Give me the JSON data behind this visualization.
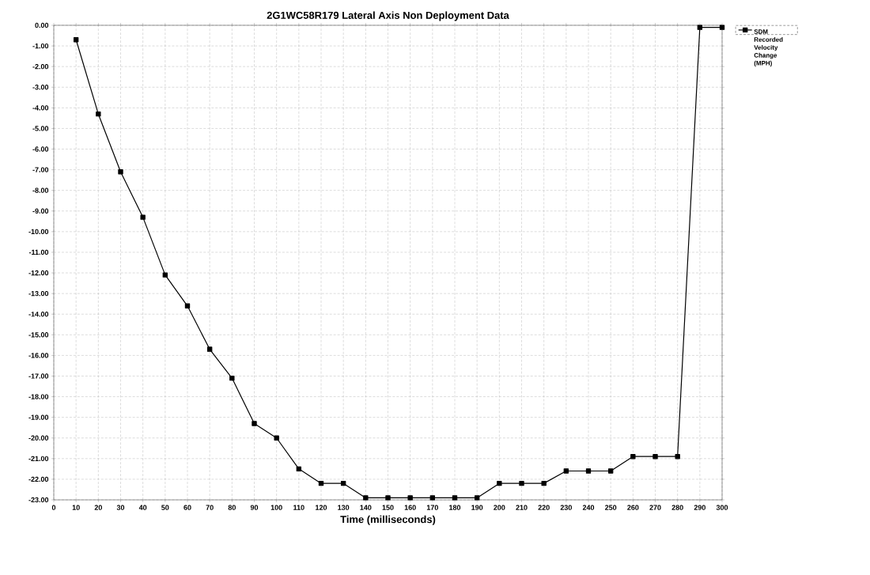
{
  "chart_data": {
    "type": "line",
    "title": "2G1WC58R179 Lateral Axis Non Deployment Data",
    "xlabel": "Time (milliseconds)",
    "x": [
      10,
      20,
      30,
      40,
      50,
      60,
      70,
      80,
      90,
      100,
      110,
      120,
      130,
      140,
      150,
      160,
      170,
      180,
      190,
      200,
      210,
      220,
      230,
      240,
      250,
      260,
      270,
      280,
      290,
      300
    ],
    "series": [
      {
        "name": "SDM Recorded Velocity Change (MPH)",
        "color": "#000000",
        "values": [
          -0.7,
          -4.3,
          -7.1,
          -9.3,
          -12.1,
          -13.6,
          -15.7,
          -17.1,
          -19.3,
          -20.0,
          -21.5,
          -22.2,
          -22.2,
          -22.9,
          -22.9,
          -22.9,
          -22.9,
          -22.9,
          -22.9,
          -22.2,
          -22.2,
          -22.2,
          -21.6,
          -21.6,
          -21.6,
          -20.9,
          -20.9,
          -20.9,
          -0.1,
          -0.1
        ]
      }
    ],
    "xlim": [
      0,
      300
    ],
    "xticks": [
      0,
      10,
      20,
      30,
      40,
      50,
      60,
      70,
      80,
      90,
      100,
      110,
      120,
      130,
      140,
      150,
      160,
      170,
      180,
      190,
      200,
      210,
      220,
      230,
      240,
      250,
      260,
      270,
      280,
      290,
      300
    ],
    "ylim": [
      -23,
      0
    ],
    "yticks": [
      {
        "value": 0,
        "label": "0.00"
      },
      {
        "value": -1,
        "label": "-1.00"
      },
      {
        "value": -2,
        "label": "-2.00"
      },
      {
        "value": -3,
        "label": "-3.00"
      },
      {
        "value": -4,
        "label": "-4.00"
      },
      {
        "value": -5,
        "label": "-5.00"
      },
      {
        "value": -6,
        "label": "-6.00"
      },
      {
        "value": -7,
        "label": "-7.00"
      },
      {
        "value": -8,
        "label": "-8.00"
      },
      {
        "value": -9,
        "label": "-9.00"
      },
      {
        "value": -10,
        "label": "-10.00"
      },
      {
        "value": -11,
        "label": "-11.00"
      },
      {
        "value": -12,
        "label": "-12.00"
      },
      {
        "value": -13,
        "label": "-13.00"
      },
      {
        "value": -14,
        "label": "-14.00"
      },
      {
        "value": -15,
        "label": "-15.00"
      },
      {
        "value": -16,
        "label": "-16.00"
      },
      {
        "value": -17,
        "label": "-17.00"
      },
      {
        "value": -18,
        "label": "-18.00"
      },
      {
        "value": -19,
        "label": "-19.00"
      },
      {
        "value": -20,
        "label": "-20.00"
      },
      {
        "value": -21,
        "label": "-21.00"
      },
      {
        "value": -22,
        "label": "-22.00"
      },
      {
        "value": -23,
        "label": "-23.00"
      }
    ],
    "grid": true,
    "legend": "top right",
    "marker": "square",
    "line_style": "solid"
  }
}
